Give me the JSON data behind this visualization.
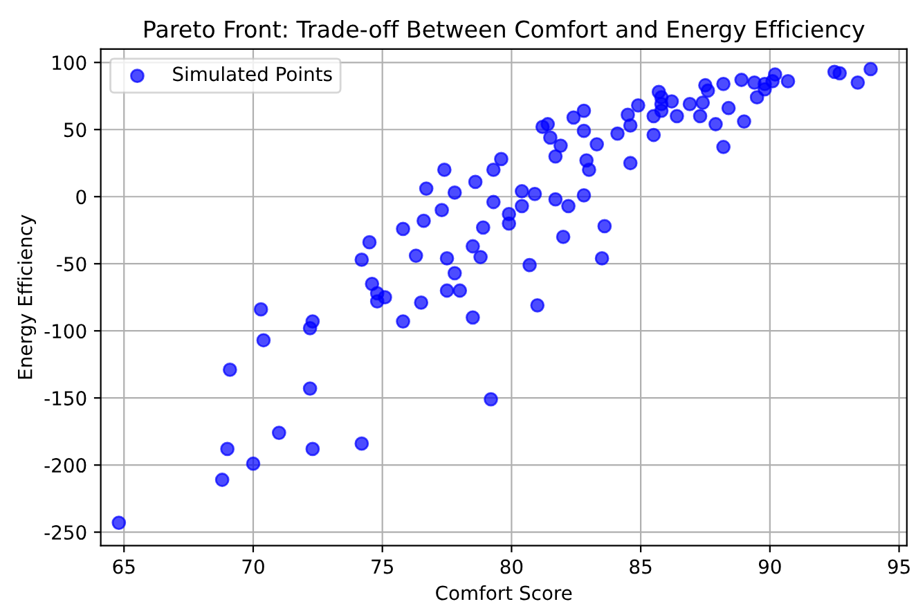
{
  "chart_data": {
    "type": "scatter",
    "title": "Pareto Front: Trade-off Between Comfort and Energy Efficiency",
    "xlabel": "Comfort Score",
    "ylabel": "Energy Efficiency",
    "xlim": [
      64.1,
      95.3
    ],
    "ylim": [
      -260,
      110
    ],
    "xticks": [
      65,
      70,
      75,
      80,
      85,
      90,
      95
    ],
    "yticks": [
      -250,
      -200,
      -150,
      -100,
      -50,
      0,
      50,
      100
    ],
    "grid": true,
    "legend": "top left",
    "marker": "circle",
    "series": [
      {
        "name": "Simulated Points",
        "color": "#0000ff",
        "x": [
          64.8,
          68.8,
          69.0,
          70.0,
          71.0,
          72.3,
          74.2,
          69.1,
          72.2,
          70.3,
          70.4,
          72.2,
          72.3,
          74.2,
          74.5,
          74.6,
          74.8,
          74.8,
          75.1,
          75.8,
          75.8,
          76.3,
          76.5,
          76.7,
          76.6,
          77.4,
          77.3,
          77.8,
          77.5,
          77.8,
          77.5,
          78.0,
          78.5,
          78.6,
          78.5,
          78.8,
          78.9,
          79.3,
          79.3,
          79.6,
          79.9,
          79.9,
          79.2,
          80.4,
          80.4,
          80.9,
          80.7,
          81.0,
          81.7,
          82.2,
          82.0,
          82.8,
          83.6,
          83.5,
          81.2,
          81.4,
          81.5,
          81.9,
          81.7,
          82.4,
          82.8,
          83.3,
          82.9,
          83.0,
          82.8,
          84.1,
          84.6,
          84.6,
          84.5,
          84.9,
          85.5,
          85.5,
          85.7,
          85.8,
          85.8,
          85.8,
          86.2,
          86.4,
          86.9,
          87.3,
          87.4,
          87.5,
          87.6,
          87.9,
          88.2,
          88.2,
          88.4,
          88.9,
          89.0,
          89.4,
          89.5,
          89.8,
          89.8,
          90.2,
          90.1,
          90.7,
          92.5,
          92.7,
          93.4,
          93.9
        ],
        "values": [
          -243,
          -211,
          -188,
          -199,
          -176,
          -188,
          -184,
          -129,
          -143,
          -84,
          -107,
          -98,
          -93,
          -47,
          -34,
          -65,
          -72,
          -78,
          -75,
          -93,
          -24,
          -44,
          -79,
          6,
          -18,
          20,
          -10,
          3,
          -46,
          -57,
          -70,
          -70,
          -90,
          11,
          -37,
          -45,
          -23,
          -4,
          20,
          28,
          -13,
          -20,
          -151,
          -7,
          4,
          2,
          -51,
          -81,
          -2,
          -7,
          -30,
          1,
          -22,
          -46,
          52,
          54,
          44,
          38,
          30,
          59,
          49,
          39,
          27,
          20,
          64,
          47,
          25,
          53,
          61,
          68,
          46,
          60,
          78,
          74,
          69,
          64,
          71,
          60,
          69,
          60,
          70,
          83,
          79,
          54,
          37,
          84,
          66,
          87,
          56,
          85,
          74,
          84,
          80,
          91,
          86,
          86,
          93,
          92,
          85,
          95
        ]
      }
    ]
  }
}
